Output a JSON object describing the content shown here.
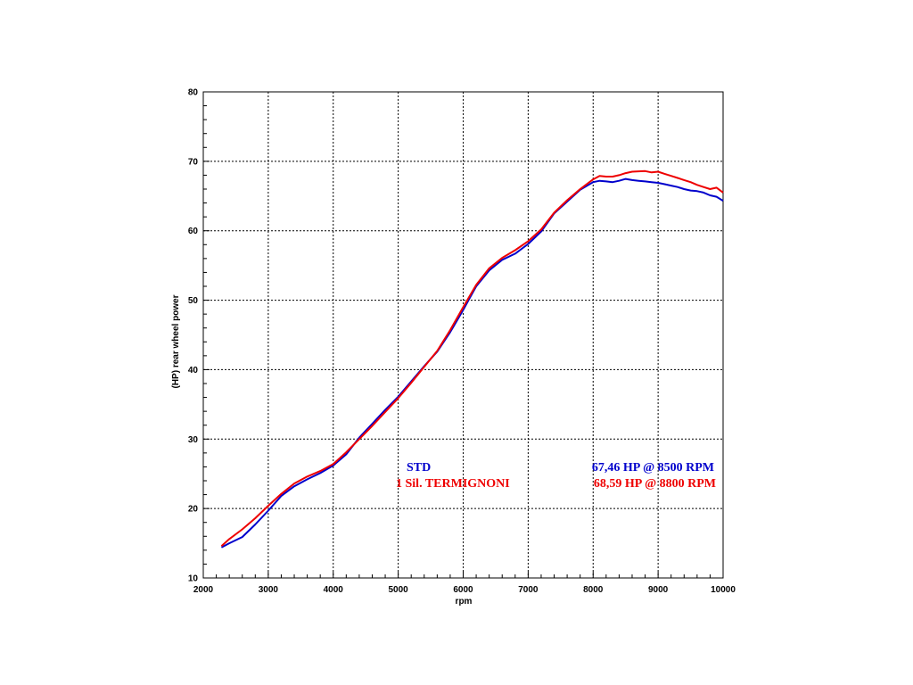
{
  "chart_data": {
    "type": "line",
    "title": "",
    "xlabel": "rpm",
    "ylabel": "(HP)  rear  wheel  power",
    "xlim": [
      2000,
      10000
    ],
    "ylim": [
      10,
      80
    ],
    "x_ticks": [
      2000,
      3000,
      4000,
      5000,
      6000,
      7000,
      8000,
      9000,
      10000
    ],
    "y_ticks": [
      10,
      20,
      30,
      40,
      50,
      60,
      70,
      80
    ],
    "grid": true,
    "legend_position": "bottom-right",
    "series": [
      {
        "name": "STD",
        "color": "#0000cc",
        "peak_label": "67,46 HP @ 8500 RPM",
        "x": [
          2280,
          2400,
          2600,
          2800,
          3000,
          3200,
          3400,
          3600,
          3800,
          4000,
          4200,
          4400,
          4600,
          4800,
          5000,
          5200,
          5400,
          5600,
          5800,
          6000,
          6100,
          6200,
          6400,
          6600,
          6800,
          7000,
          7200,
          7400,
          7600,
          7800,
          8000,
          8100,
          8200,
          8300,
          8400,
          8500,
          8600,
          8700,
          8800,
          8900,
          9000,
          9100,
          9200,
          9300,
          9400,
          9500,
          9600,
          9700,
          9800,
          9900,
          10000
        ],
        "values": [
          14.4,
          15.0,
          15.9,
          17.7,
          19.7,
          21.8,
          23.2,
          24.2,
          25.1,
          26.2,
          27.8,
          30.2,
          32.2,
          34.2,
          36.1,
          38.3,
          40.5,
          42.6,
          45.4,
          48.6,
          50.3,
          52.0,
          54.3,
          55.8,
          56.7,
          58.1,
          59.9,
          62.5,
          64.2,
          65.9,
          67.0,
          67.2,
          67.1,
          67.0,
          67.2,
          67.46,
          67.3,
          67.2,
          67.1,
          67.0,
          66.9,
          66.7,
          66.5,
          66.3,
          66.0,
          65.8,
          65.7,
          65.5,
          65.1,
          64.9,
          64.3
        ]
      },
      {
        "name": "1 Sil. TERMIGNONI",
        "color": "#ee0000",
        "peak_label": "68,59 HP @ 8800 RPM",
        "x": [
          2280,
          2400,
          2600,
          2800,
          3000,
          3200,
          3400,
          3600,
          3800,
          4000,
          4200,
          4400,
          4600,
          4800,
          5000,
          5200,
          5400,
          5600,
          5800,
          6000,
          6100,
          6200,
          6400,
          6600,
          6800,
          7000,
          7200,
          7400,
          7600,
          7800,
          8000,
          8100,
          8200,
          8300,
          8400,
          8500,
          8600,
          8700,
          8800,
          8900,
          9000,
          9100,
          9200,
          9300,
          9400,
          9500,
          9600,
          9700,
          9800,
          9900,
          10000
        ],
        "values": [
          14.6,
          15.6,
          17.0,
          18.6,
          20.4,
          22.1,
          23.6,
          24.6,
          25.4,
          26.4,
          28.1,
          30.0,
          31.9,
          33.9,
          35.9,
          38.1,
          40.4,
          42.7,
          45.7,
          49.0,
          50.6,
          52.2,
          54.6,
          56.1,
          57.2,
          58.5,
          60.2,
          62.6,
          64.4,
          66.0,
          67.4,
          67.9,
          67.8,
          67.8,
          68.0,
          68.3,
          68.5,
          68.55,
          68.59,
          68.4,
          68.5,
          68.2,
          67.9,
          67.6,
          67.3,
          67.0,
          66.6,
          66.3,
          66.0,
          66.2,
          65.5
        ]
      }
    ]
  }
}
